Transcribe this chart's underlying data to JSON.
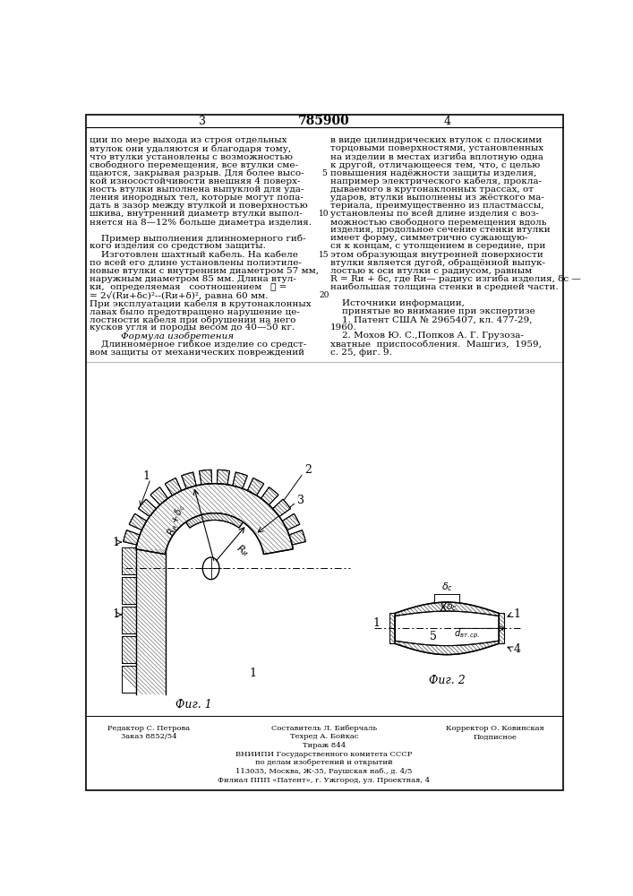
{
  "page_width": 7.07,
  "page_height": 10.0,
  "bg_color": "#ffffff",
  "text_color": "#000000",
  "patent_number": "785900",
  "col_left_header": "3",
  "col_right_header": "4",
  "col_left_text": [
    "ции по мере выхода из строя отдельных",
    "втулок они удаляются и благодаря тому,",
    "что втулки установлены с возможностью",
    "свободного перемещения, все втулки сме-",
    "щаются, закрывая разрыв. Для более высо-",
    "кой износостойчивости внешняя 4 поверх-",
    "ность втулки выполнена выпуклой для уда-",
    "ления инородных тел, которые могут попа-",
    "дать в зазор между втулкой и поверхностью",
    "шкива, внутренний диаметр втулки выпол-",
    "няется на 8—12% больше диаметра изделия.",
    "",
    "    Пример выполнения длинномерного гиб-",
    "кого изделия со средством защиты.",
    "    Изготовлен шахтный кабель. На кабеле",
    "по всей его длине установлены полиэтиле-",
    "новые втулки с внутренним диаметром 57 мм,",
    "наружным диаметром 85 мм. Длина втул-",
    "ки,  определяемая   соотношением   ℓ =",
    "= 2√(Rи+δс)²--(Rи+δ)², равна 60 мм.",
    "При эксплуатации кабеля в крутонаклонных",
    "лавах было предотвращено нарушение це-",
    "лостности кабеля при обрушении на него",
    "кусков угля и породы весом до 40—50 кг.",
    "    Формула изобретения",
    "    Длинномерное гибкое изделие со средст-",
    "вом защиты от механических повреждений"
  ],
  "col_right_text": [
    "в виде цилиндрических втулок с плоскими",
    "торцовыми поверхностями, установленных",
    "на изделии в местах изгиба вплотную одна",
    "к другой, отличающееся тем, что, с целью",
    "повышения надёжности защиты изделия,",
    "например электрического кабеля, прокла-",
    "дываемого в крутонаклонных трассах, от",
    "ударов, втулки выполнены из жёсткого ма-",
    "териала, преимущественно из пластмассы,",
    "установлены по всей длине изделия с воз-",
    "можностью свободного перемещения вдоль",
    "изделия, продольное сечение стенки втулки",
    "имеет форму, симметрично сужающую-",
    "ся к концам, с утолщением в середине, при",
    "этом образующая внутренней поверхности",
    "втулки является дугой, обращённой выпук-",
    "лостью к оси втулки с радиусом, равным",
    "R = Rи + δс, где Rи— радиус изгиба изделия, δс —",
    "наибольшая толщина стенки в средней части.",
    "",
    "    Источники информации,",
    "    принятые во внимание при экспертизе",
    "    1. Патент США № 2965407, кл. 477-29,",
    "1960.",
    "    2. Мохов Ю. С.,Попков А. Г. Грузоза-",
    "хватные  приспособления.  Машгиз,  1959,",
    "с. 25, фиг. 9."
  ],
  "line_numbers": {
    "5": 5,
    "10": 10,
    "15": 15,
    "20": 20
  },
  "fig1_label": "Фиг. 1",
  "fig2_label": "Фиг. 2",
  "footer_editor": "Редактор С. Петрова",
  "footer_techred": "Техред А. Бойкас",
  "footer_compiler": "Составитель Л. Биберчаль",
  "footer_corrector": "Корректор О. Ковинская",
  "footer_order": "Заказ 8852/54",
  "footer_circulation": "Тираж 844",
  "footer_signed": "Подписное",
  "footer_vniip1": "ВНИИПИ Государственного комитета СССР",
  "footer_vniip2": "по делам изобретений и открытий",
  "footer_address": "113035, Москва, Ж-35, Раушская наб., д. 4/5",
  "footer_branch": "Филиал ППП «Патент», г. Ужгород, ул. Проектная, 4"
}
